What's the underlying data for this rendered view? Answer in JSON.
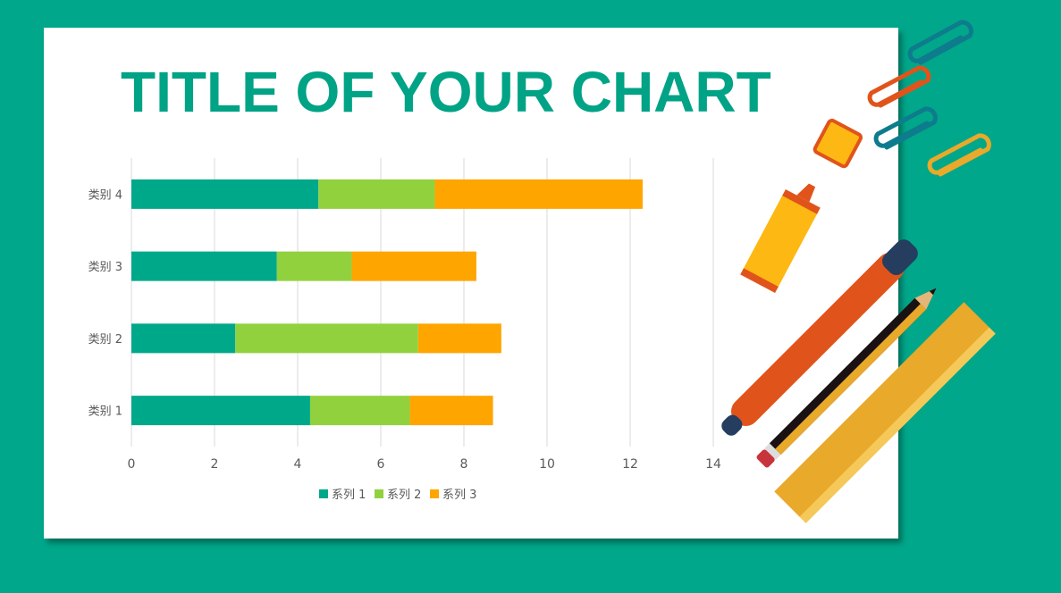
{
  "chart_data": {
    "type": "bar",
    "orientation": "horizontal",
    "stacked": true,
    "title": "TITLE OF YOUR CHART",
    "categories": [
      "类别 1",
      "类别 2",
      "类别 3",
      "类别 4"
    ],
    "series": [
      {
        "name": "系列 1",
        "values": [
          4.3,
          2.5,
          3.5,
          4.5
        ],
        "color": "#00A88A"
      },
      {
        "name": "系列 2",
        "values": [
          2.4,
          4.4,
          1.8,
          2.8
        ],
        "color": "#92D13E"
      },
      {
        "name": "系列 3",
        "values": [
          2,
          2,
          3,
          5
        ],
        "color": "#FFA500"
      }
    ],
    "xlim": [
      0,
      14
    ],
    "xticks": [
      "0",
      "2",
      "4",
      "6",
      "8",
      "10",
      "12",
      "14"
    ],
    "grid": true,
    "legend": "bottom"
  },
  "colors": {
    "background": "#00A78A",
    "title": "#00A385"
  },
  "decorations": [
    "paperclip-icon",
    "highlighter-icon",
    "pen-icon",
    "pencil-icon",
    "ruler-icon"
  ]
}
